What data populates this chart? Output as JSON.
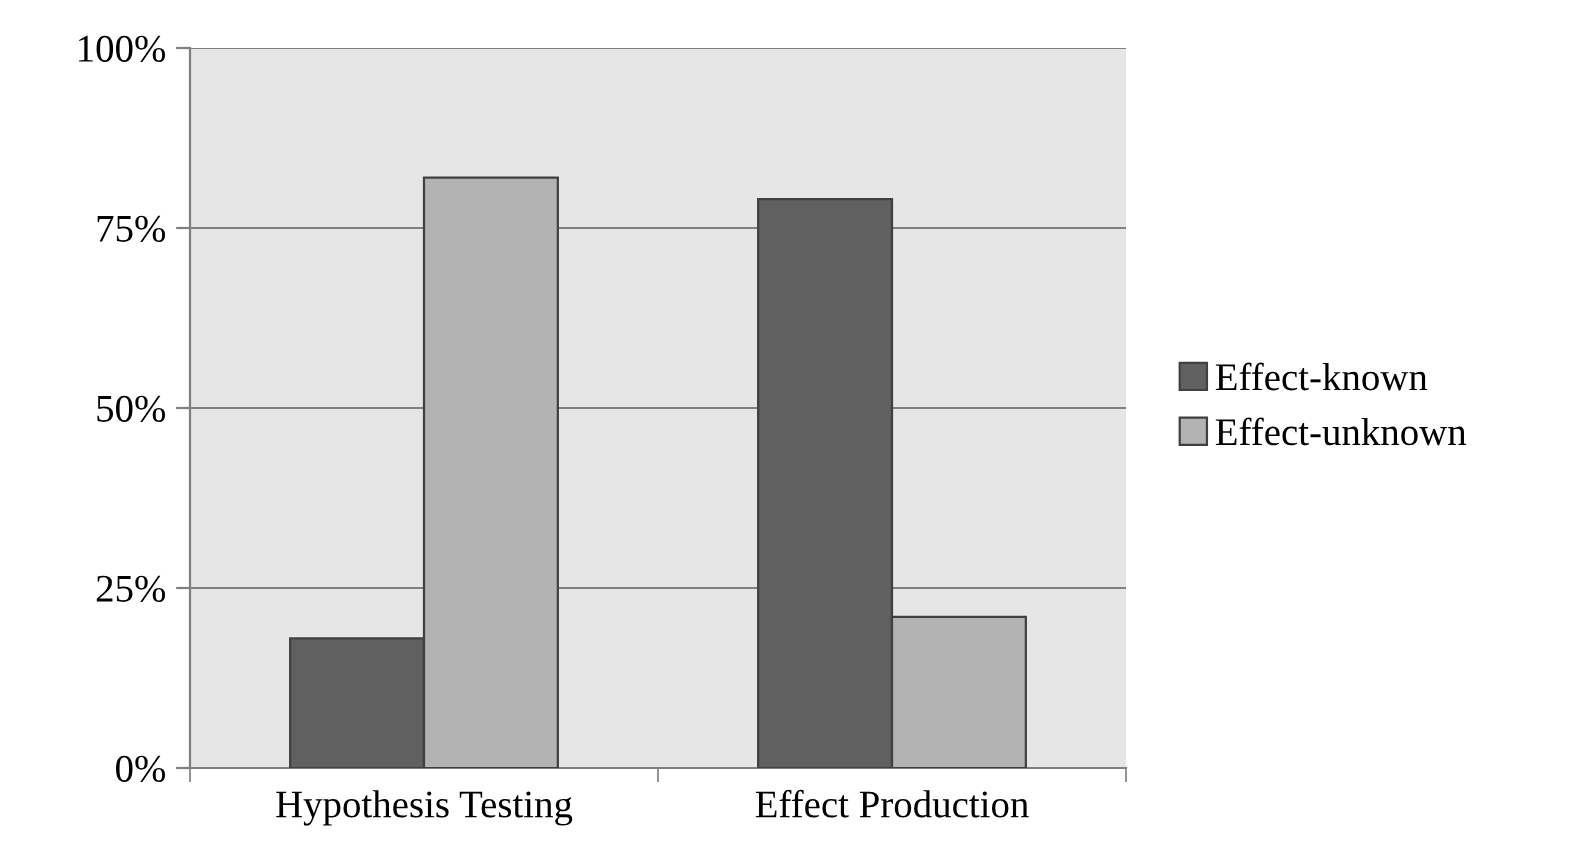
{
  "chart_data": {
    "type": "bar",
    "categories": [
      "Hypothesis Testing",
      "Effect Production"
    ],
    "series": [
      {
        "name": "Effect-known",
        "color": "#606060",
        "values": [
          18,
          79
        ]
      },
      {
        "name": "Effect-unknown",
        "color": "#b3b3b3",
        "values": [
          82,
          21
        ]
      }
    ],
    "ylim": [
      0,
      100
    ],
    "yticks": [
      {
        "value": 0,
        "label": "0%"
      },
      {
        "value": 25,
        "label": "25%"
      },
      {
        "value": 50,
        "label": "50%"
      },
      {
        "value": 75,
        "label": "75%"
      },
      {
        "value": 100,
        "label": "100%"
      }
    ],
    "grid": "y",
    "legend": "right"
  }
}
